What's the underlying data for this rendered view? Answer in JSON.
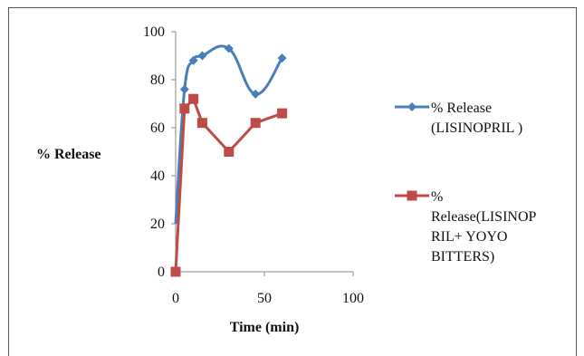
{
  "chart_data": {
    "type": "line",
    "xlabel": "Time (min)",
    "ylabel": "% Release",
    "xlim": [
      0,
      100
    ],
    "ylim": [
      0,
      100
    ],
    "x_ticks": [
      0,
      50,
      100
    ],
    "y_ticks": [
      0,
      20,
      40,
      60,
      80,
      100
    ],
    "grid": false,
    "legend_position": "right",
    "series": [
      {
        "name": "% Release (LISINOPRIL )",
        "legend_lines": [
          "% Release",
          "(LISINOPRIL )"
        ],
        "color": "#4a7ebb",
        "marker": "diamond",
        "smooth": true,
        "x": [
          0,
          5,
          10,
          15,
          30,
          45,
          60
        ],
        "y": [
          20,
          76,
          88,
          90,
          93,
          74,
          89
        ]
      },
      {
        "name": "% Release(LISINOPRIL+ YOYO BITTERS)",
        "legend_lines": [
          "%",
          "Release(LISINOP",
          "RIL+ YOYO",
          "BITTERS)"
        ],
        "color": "#be4b48",
        "marker": "square",
        "smooth": false,
        "x": [
          0,
          5,
          10,
          15,
          30,
          45,
          60
        ],
        "y": [
          0,
          68,
          72,
          62,
          50,
          62,
          66
        ]
      }
    ]
  }
}
